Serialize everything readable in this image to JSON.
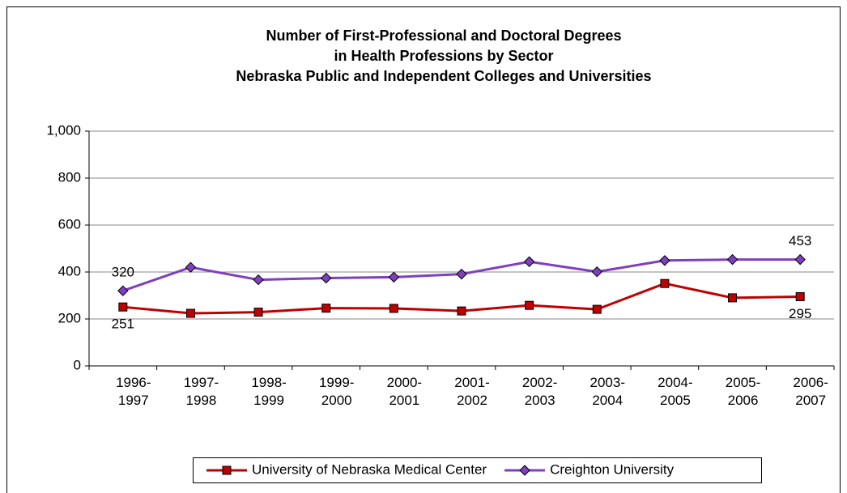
{
  "chart_data": {
    "type": "line",
    "title": [
      "Number of First-Professional and Doctoral Degrees",
      "in Health Professions by Sector",
      "Nebraska Public and Independent Colleges and Universities"
    ],
    "categories": [
      "1996-1997",
      "1997-1998",
      "1998-1999",
      "1999-2000",
      "2000-2001",
      "2001-2002",
      "2002-2003",
      "2003-2004",
      "2004-2005",
      "2005-2006",
      "2006-2007"
    ],
    "series": [
      {
        "name": "University of Nebraska Medical Center",
        "color": "#c00000",
        "marker": "square",
        "values": [
          251,
          224,
          229,
          246,
          245,
          234,
          258,
          241,
          351,
          290,
          295
        ],
        "value_labels": [
          "251",
          null,
          null,
          null,
          null,
          null,
          null,
          null,
          null,
          null,
          "295"
        ]
      },
      {
        "name": "Creighton University",
        "color": "#7f3fbf",
        "marker": "diamond",
        "values": [
          320,
          420,
          367,
          374,
          378,
          391,
          444,
          401,
          449,
          453,
          453
        ],
        "value_labels": [
          "320",
          null,
          null,
          null,
          null,
          null,
          null,
          null,
          null,
          null,
          "453"
        ]
      }
    ],
    "ylim": [
      0,
      1000
    ],
    "yticks": [
      0,
      200,
      400,
      600,
      800,
      {
        "value": 1000,
        "label": "1,000"
      }
    ],
    "grid": true,
    "legend": "bottom"
  }
}
